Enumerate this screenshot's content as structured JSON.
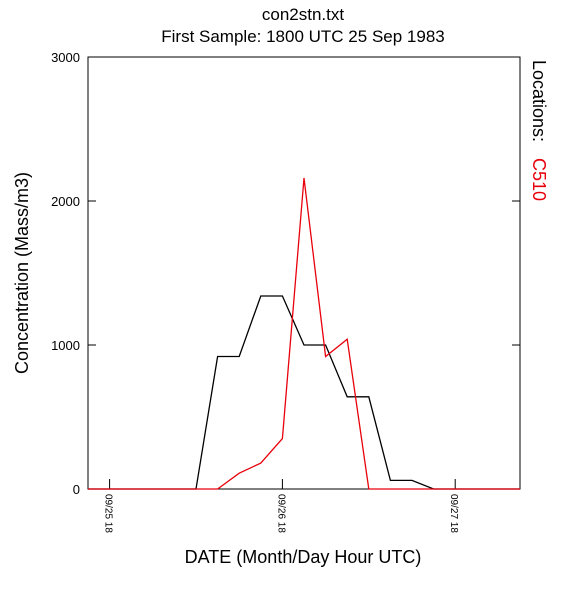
{
  "chart_data": {
    "type": "line",
    "title": "con2stn.txt",
    "subtitle": "First Sample: 1800 UTC 25 Sep 1983",
    "xlabel": "DATE (Month/Day Hour UTC)",
    "ylabel": "Concentration (Mass/m3)",
    "ylim": [
      0,
      3000
    ],
    "xlim_hours": [
      -3,
      57
    ],
    "yticks": [
      "0",
      "1000",
      "2000",
      "3000"
    ],
    "ytick_values": [
      0,
      1000,
      2000,
      3000
    ],
    "xtick_labels": [
      "09/25 18",
      "09/26 18",
      "09/27 18"
    ],
    "xtick_hours": [
      0,
      24,
      48
    ],
    "legend": {
      "label": "Locations:",
      "placement": "right"
    },
    "grid": false,
    "series": [
      {
        "name": "",
        "color": "#000000",
        "x": [
          -3,
          0,
          3,
          6,
          9,
          12,
          15,
          18,
          21,
          24,
          27,
          30,
          33,
          36,
          39,
          42,
          45,
          48,
          51,
          54,
          57
        ],
        "y": [
          0,
          0,
          0,
          0,
          0,
          0,
          920,
          920,
          1340,
          1340,
          1000,
          1000,
          640,
          640,
          60,
          60,
          0,
          0,
          0,
          0,
          0
        ]
      },
      {
        "name": "C510",
        "color": "#e8000b",
        "x": [
          -3,
          0,
          3,
          6,
          9,
          12,
          15,
          18,
          21,
          24,
          27,
          30,
          33,
          36,
          39,
          42,
          45,
          48,
          51,
          54,
          57
        ],
        "y": [
          0,
          0,
          0,
          0,
          0,
          0,
          0,
          110,
          180,
          350,
          2160,
          920,
          1040,
          0,
          0,
          0,
          0,
          0,
          0,
          0,
          0
        ]
      }
    ]
  }
}
